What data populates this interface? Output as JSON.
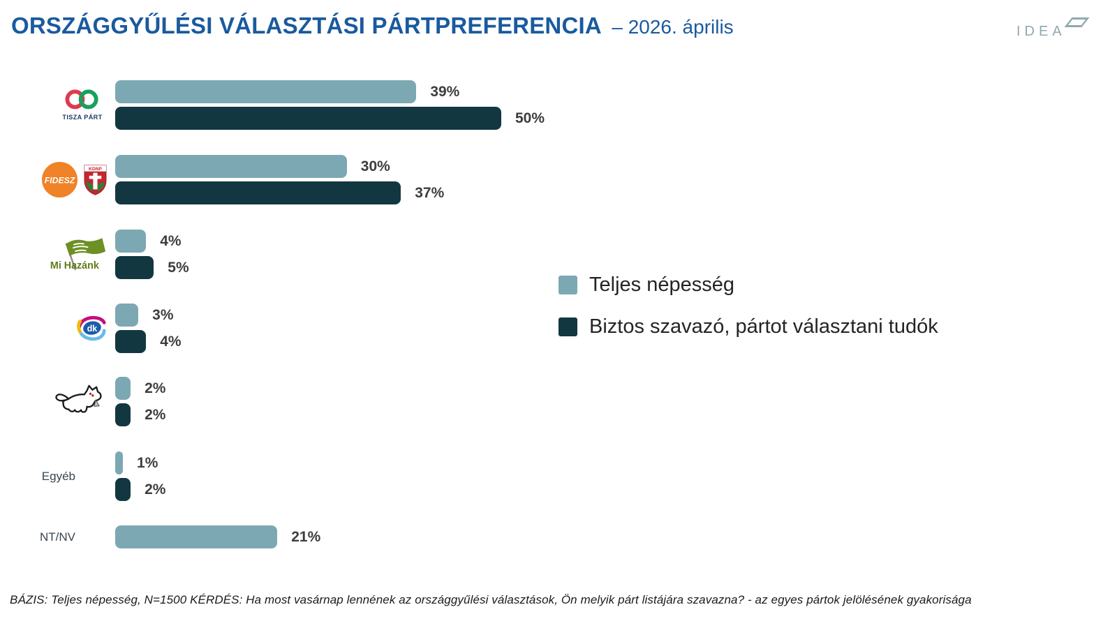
{
  "header": {
    "title": "ORSZÁGGYŰLÉSI VÁLASZTÁSI PÁRTPREFERENCIA",
    "subtitle": "– 2026. április",
    "brand": "IDEA"
  },
  "legend": {
    "items": [
      {
        "label": "Teljes népesség",
        "color": "#7CA8B3"
      },
      {
        "label": "Biztos szavazó, pártot választani tudók",
        "color": "#123741"
      }
    ]
  },
  "chart_data": {
    "type": "bar",
    "orientation": "horizontal",
    "unit": "%",
    "xlim": [
      0,
      55
    ],
    "categories": [
      "Tisza Párt",
      "Fidesz–KDNP",
      "Mi Hazánk",
      "DK",
      "MKKP",
      "Egyéb",
      "NT/NV"
    ],
    "series": [
      {
        "name": "Teljes népesség",
        "color": "#7CA8B3",
        "values": [
          39,
          30,
          4,
          3,
          2,
          1,
          21
        ]
      },
      {
        "name": "Biztos szavazó, pártot választani tudók",
        "color": "#123741",
        "values": [
          50,
          37,
          5,
          4,
          2,
          2,
          null
        ]
      }
    ]
  },
  "parties": [
    {
      "name": "Tisza Párt",
      "icon": "tisza-part-logo",
      "label": null
    },
    {
      "name": "Fidesz–KDNP",
      "icon": "fidesz-kdnp-logo",
      "label": null
    },
    {
      "name": "Mi Hazánk",
      "icon": "mi-hazank-logo",
      "label": null
    },
    {
      "name": "DK",
      "icon": "dk-logo",
      "label": null
    },
    {
      "name": "MKKP",
      "icon": "mkkp-dog-logo",
      "label": null
    },
    {
      "name": "Egyéb",
      "icon": null,
      "label": "Egyéb"
    },
    {
      "name": "NT/NV",
      "icon": null,
      "label": "NT/NV"
    }
  ],
  "logos": {
    "tisza_text": "TISZA PÁRT",
    "fidesz_text": "FIDESZ",
    "kdnp_text": "KDNP",
    "mi_hazank_text": "Mi Hazánk",
    "dk_text": "dk"
  },
  "footer": {
    "note": "BÁZIS: Teljes népesség, N=1500  KÉRDÉS:  Ha most vasárnap lennének az országgyűlési választások, Ön melyik párt listájára szavazna? - az egyes pártok jelölésének gyakorisága"
  }
}
